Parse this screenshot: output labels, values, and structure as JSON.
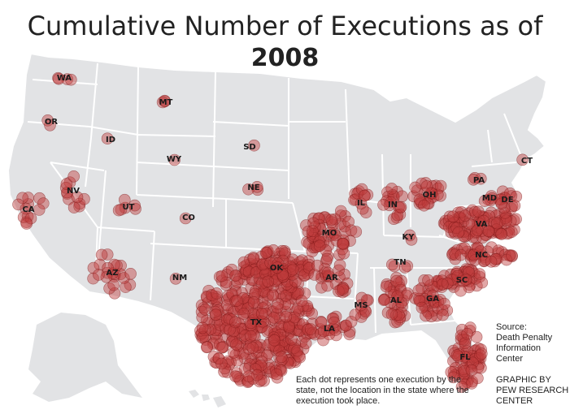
{
  "title": "Cumulative Number of Executions as of",
  "year": "2008",
  "source": "Source:\nDeath Penalty\nInformation\nCenter",
  "credit": "GRAPHIC BY\nPEW RESEARCH\nCENTER",
  "note": "Each dot represents one execution by the state, not the location in the state where the execution took place.",
  "colors": {
    "land": "#e2e3e5",
    "border": "#ffffff",
    "dot_fill": "#be3c3c",
    "dot_stroke": "#781414"
  },
  "states": [
    {
      "abbr": "WA",
      "count": 4
    },
    {
      "abbr": "OR",
      "count": 2
    },
    {
      "abbr": "MT",
      "count": 3
    },
    {
      "abbr": "ID",
      "count": 1
    },
    {
      "abbr": "WY",
      "count": 1
    },
    {
      "abbr": "SD",
      "count": 1
    },
    {
      "abbr": "NE",
      "count": 3
    },
    {
      "abbr": "NV",
      "count": 12
    },
    {
      "abbr": "UT",
      "count": 6
    },
    {
      "abbr": "CO",
      "count": 1
    },
    {
      "abbr": "CA",
      "count": 13
    },
    {
      "abbr": "AZ",
      "count": 23
    },
    {
      "abbr": "NM",
      "count": 1
    },
    {
      "abbr": "TX",
      "count": 423
    },
    {
      "abbr": "OK",
      "count": 88
    },
    {
      "abbr": "MO",
      "count": 66
    },
    {
      "abbr": "AR",
      "count": 27
    },
    {
      "abbr": "LA",
      "count": 27
    },
    {
      "abbr": "IL",
      "count": 12
    },
    {
      "abbr": "IN",
      "count": 19
    },
    {
      "abbr": "OH",
      "count": 26
    },
    {
      "abbr": "KY",
      "count": 2
    },
    {
      "abbr": "TN",
      "count": 4
    },
    {
      "abbr": "MS",
      "count": 10
    },
    {
      "abbr": "AL",
      "count": 38
    },
    {
      "abbr": "GA",
      "count": 43
    },
    {
      "abbr": "FL",
      "count": 66
    },
    {
      "abbr": "SC",
      "count": 40
    },
    {
      "abbr": "NC",
      "count": 43
    },
    {
      "abbr": "VA",
      "count": 102
    },
    {
      "abbr": "MD",
      "count": 5
    },
    {
      "abbr": "DE",
      "count": 14
    },
    {
      "abbr": "PA",
      "count": 3
    },
    {
      "abbr": "CT",
      "count": 1
    }
  ]
}
